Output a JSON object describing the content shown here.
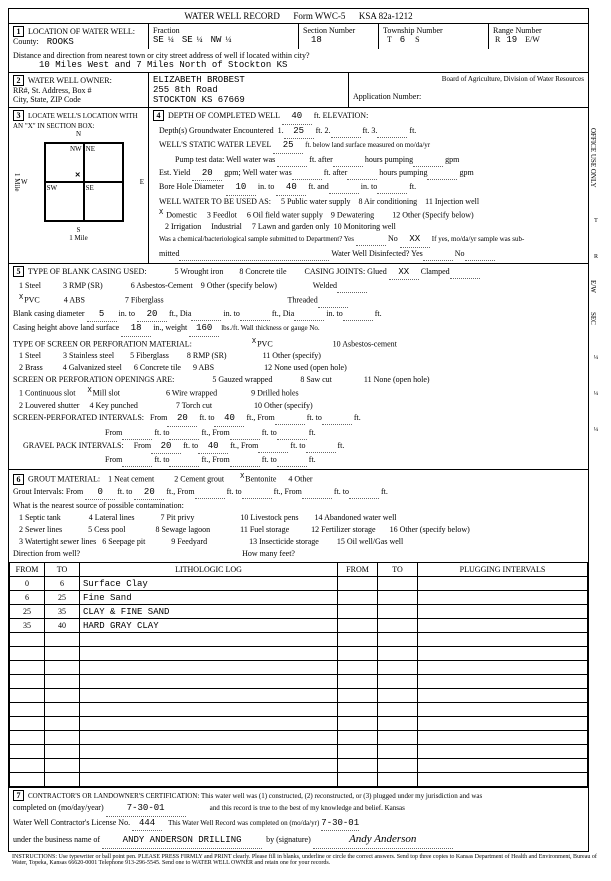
{
  "header": {
    "title": "WATER WELL RECORD",
    "form_no": "Form WWC-5",
    "ksa": "KSA 82a-1212"
  },
  "sec1": {
    "label": "LOCATION OF WATER WELL:",
    "county_label": "County:",
    "county": "ROOKS",
    "fraction_label": "Fraction",
    "f1a": "SE",
    "f1b": "¼",
    "f2a": "SE",
    "f2b": "¼",
    "f3a": "NW",
    "f3b": "¼",
    "section_label": "Section Number",
    "section": "18",
    "township_label": "Township Number",
    "t_t": "T",
    "township": "6",
    "t_s": "S",
    "range_label": "Range Number",
    "r_r": "R",
    "range": "19",
    "r_ew": "E/W",
    "distance_label": "Distance and direction from nearest town or city street address of well if located within city?",
    "distance": "10 Miles West and 7 Miles North of Stockton KS"
  },
  "sec2": {
    "label": "WATER WELL OWNER:",
    "owner": "ELIZABETH BROBEST",
    "addr_label": "RR#, St. Address, Box #",
    "addr": "255  8th  Road",
    "city_label": "City, State, ZIP Code",
    "city": "STOCKTON  KS  67669",
    "board": "Board of Agriculture, Division of Water Resources",
    "app_label": "Application Number:"
  },
  "sec3": {
    "label": "LOCATE WELL'S LOCATION WITH AN \"X\" IN SECTION BOX:",
    "n": "N",
    "nw": "NW",
    "ne": "NE",
    "sw": "SW",
    "se": "SE",
    "w": "W",
    "e": "E",
    "s": "S",
    "mile": "1 Mile"
  },
  "sec4": {
    "label": "DEPTH OF COMPLETED WELL",
    "depth": "40",
    "ft": "ft.",
    "elev_label": "ELEVATION:",
    "gw_label": "Depth(s) Groundwater Encountered",
    "gw1": "25",
    "ft1": "ft. 1.",
    "ft2": "ft. 2.",
    "ft3": "ft. 3.",
    "static_label": "WELL'S STATIC WATER LEVEL",
    "static": "25",
    "static_tail": "ft. below land surface measured on mo/da/yr",
    "pump_label": "Pump test data:  Well water was",
    "ft_after": "ft. after",
    "hrs_pump": "hours pumping",
    "gpm": "gpm",
    "est_label": "Est. Yield",
    "est": "20",
    "gpm2": "gpm;  Well water was",
    "bore_label": "Bore Hole Diameter",
    "bore1": "10",
    "in_to": "in. to",
    "bore2": "40",
    "ft_and": "ft. and",
    "in_to2": "in. to",
    "ft_end": "ft.",
    "use_label": "WELL WATER TO BE USED AS:",
    "u1": "Domestic",
    "u2": "Irrigation",
    "u3": "Feedlot",
    "u4": "Industrial",
    "u5": "5  Public water supply",
    "u6": "6  Oil field water supply",
    "u7": "7  Lawn and garden only",
    "u8": "8  Air conditioning",
    "u9": "9  Dewatering",
    "u10": "10 Monitoring well",
    "u11": "11  Injection well",
    "u12": "12  Other (Specify below)",
    "bact_label": "Was a chemical/bacteriological sample submitted to Department? Yes",
    "no": "No",
    "xx": "XX",
    "bact_tail": "If yes, mo/da/yr sample was sub-",
    "mitted": "mitted",
    "disinf": "Water Well Disinfected?  Yes",
    "no2": "No"
  },
  "sec5": {
    "label": "TYPE OF BLANK CASING USED:",
    "c1": "1  Steel",
    "c2": "2",
    "pvc": "PVC",
    "c3": "3 RMP (SR)",
    "c4": "4 ABS",
    "c5": "5 Wrought iron",
    "c6": "6 Asbestos-Cement",
    "c7": "7 Fiberglass",
    "c8": "8 Concrete tile",
    "c9": "9 Other (specify below)",
    "joints_label": "CASING JOINTS: Glued",
    "clamped": "Clamped",
    "welded": "Welded",
    "threaded": "Threaded",
    "bcd_label": "Blank casing diameter",
    "bcd": "5",
    "bcd_in_to": "in. to",
    "bcd2": "20",
    "ft_dia": "ft., Dia",
    "in_to": "in. to",
    "ft_dia2": "ft., Dia",
    "in_to2": "in. to",
    "ft2": "ft.",
    "height_label": "Casing height above land surface",
    "height": "18",
    "weight_label": "in., weight",
    "weight": "160",
    "weight_tail": "lbs./ft. Wall thickness or gauge No.",
    "perf_label": "TYPE OF SCREEN OR PERFORATION MATERIAL:",
    "p1": "1  Steel",
    "p2": "2  Brass",
    "p3": "3 Stainless steel",
    "p4": "4 Galvanized steel",
    "p5": "5 Fiberglass",
    "p6": "6 Concrete tile",
    "p7": "PVC",
    "p8": "8 RMP (SR)",
    "p9": "9 ABS",
    "p10": "10 Asbestos-cement",
    "p11": "11 Other (specify)",
    "p12": "12 None used (open hole)",
    "open_label": "SCREEN OR PERFORATION OPENINGS ARE:",
    "o1": "1 Continuous slot",
    "o2": "2 Louvered shutter",
    "o3": "Mill slot",
    "o4": "4 Key punched",
    "o5": "5 Gauzed wrapped",
    "o6": "6 Wire wrapped",
    "o7": "7 Torch cut",
    "o8": "8 Saw cut",
    "o9": "9 Drilled holes",
    "o10": "10 Other (specify)",
    "o11": "11 None (open hole)",
    "spi_label": "SCREEN-PERFORATED INTERVALS:",
    "from": "From",
    "to": "ft. to",
    "from2": "ft., From",
    "ft_to": "ft. to",
    "ft_end": "ft.",
    "spi1": "20",
    "spi2": "40",
    "gpi_label": "GRAVEL PACK INTERVALS:",
    "gpi1": "20",
    "gpi2": "40"
  },
  "sec6": {
    "label": "GROUT MATERIAL:",
    "g1": "1 Neat cement",
    "g2": "2 Cement grout",
    "g3": "Bentonite",
    "g4": "4 Other",
    "gi_label": "Grout Intervals:  From",
    "gi1": "0",
    "gi2": "20",
    "ft_to": "ft. to",
    "from": "ft., From",
    "ft_end": "ft.",
    "near_label": "What is the nearest source of possible contamination:",
    "n1": "1 Septic tank",
    "n2": "2 Sewer lines",
    "n3": "3 Watertight sewer lines",
    "n4": "4 Lateral lines",
    "n5": "5 Cess pool",
    "n6": "6 Seepage pit",
    "n7": "7 Pit privy",
    "n8": "8 Sewage lagoon",
    "n9": "9 Feedyard",
    "n10": "10  Livestock pens",
    "n11": "11  Fuel storage",
    "n12": "12  Fertilizer storage",
    "n13": "13  Insecticide storage",
    "n14": "14  Abandoned water well",
    "n15": "15  Oil well/Gas well",
    "n16": "16  Other (specify below)",
    "dir_label": "Direction from well?",
    "many_label": "How many feet?"
  },
  "log": {
    "h_from": "FROM",
    "h_to": "TO",
    "h_lith": "LITHOLOGIC LOG",
    "h_from2": "FROM",
    "h_to2": "TO",
    "h_plug": "PLUGGING INTERVALS",
    "rows": [
      {
        "from": "0",
        "to": "6",
        "lith": "Surface Clay"
      },
      {
        "from": "6",
        "to": "25",
        "lith": "Fine Sand"
      },
      {
        "from": "25",
        "to": "35",
        "lith": "CLAY & FINE SAND"
      },
      {
        "from": "35",
        "to": "40",
        "lith": "HARD GRAY CLAY"
      }
    ],
    "blank_rows": 11
  },
  "sec7": {
    "label": "CONTRACTOR'S OR LANDOWNER'S CERTIFICATION: This water well was (1) constructed, (2) reconstructed, or (3) plugged under my jurisdiction and was",
    "comp_label": "completed on (mo/day/year)",
    "comp_date": "7-30-01",
    "comp_tail": "and this record is true to the best of my knowledge and belief. Kansas",
    "lic_label": "Water Well Contractor's License No.",
    "lic": "444",
    "lic_tail": "This Water Well Record was completed on (mo/da/yr)",
    "lic_date": "7-30-01",
    "bus_label": "under the business name of",
    "bus": "ANDY ANDERSON DRILLING",
    "sig_label": "by (signature)",
    "sig": "Andy Anderson"
  },
  "footer": {
    "instr": "INSTRUCTIONS: Use typewriter or ball point pen. PLEASE PRESS FIRMLY and PRINT clearly. Please fill in blanks, underline or circle the correct answers. Send top three copies to Kansas Department of Health and Environment, Bureau of Water, Topeka, Kansas 66620-0001  Telephone  913-296-5545. Send one to WATER WELL OWNER and retain one for your records."
  },
  "side": {
    "office": "OFFICE USE ONLY",
    "t": "T",
    "r": "R",
    "ew": "E/W",
    "sec": "SEC",
    "q1": "¼",
    "q2": "¼",
    "q3": "¼"
  }
}
